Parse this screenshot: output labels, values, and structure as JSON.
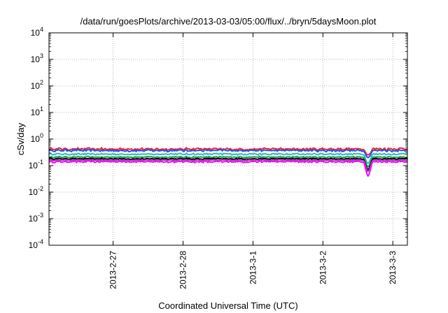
{
  "chart_data": {
    "type": "line",
    "title": "/data/run/goesPlots/archive/2013-03-03/05:00/flux/../bryn/5daysMoon.plot",
    "xlabel": "Coordinated Universal Time (UTC)",
    "ylabel": "cSv/day",
    "yscale": "log",
    "ylim": [
      0.0001,
      10000
    ],
    "yticks": [
      {
        "base": "10",
        "exp": "-4"
      },
      {
        "base": "10",
        "exp": "-3"
      },
      {
        "base": "10",
        "exp": "-2"
      },
      {
        "base": "10",
        "exp": "-1"
      },
      {
        "base": "10",
        "exp": "0"
      },
      {
        "base": "10",
        "exp": "1"
      },
      {
        "base": "10",
        "exp": "2"
      },
      {
        "base": "10",
        "exp": "3"
      },
      {
        "base": "10",
        "exp": "4"
      }
    ],
    "xlim": [
      "2013-02-26T02:00",
      "2013-03-03T05:00"
    ],
    "xticks": [
      "2013-2-27",
      "2013-2-28",
      "2013-3-1",
      "2013-3-2",
      "2013-3-3"
    ],
    "grid": true,
    "series": [
      {
        "color": "#ff2020",
        "level": 0.42,
        "noise": 0.13,
        "dip_min": 0.25
      },
      {
        "color": "#2050ff",
        "level": 0.37,
        "noise": 0.12,
        "dip_min": 0.2
      },
      {
        "color": "#20c0c0",
        "level": 0.27,
        "noise": 0.09,
        "dip_min": 0.12
      },
      {
        "color": "#20a040",
        "level": 0.21,
        "noise": 0.07,
        "dip_min": 0.09
      },
      {
        "color": "#000000",
        "level": 0.18,
        "noise": 0.07,
        "dip_min": 0.07
      },
      {
        "color": "#a040c0",
        "level": 0.16,
        "noise": 0.07,
        "dip_min": 0.06
      },
      {
        "color": "#ff00ff",
        "level": 0.14,
        "noise": 0.1,
        "dip_min": 0.04
      }
    ]
  }
}
